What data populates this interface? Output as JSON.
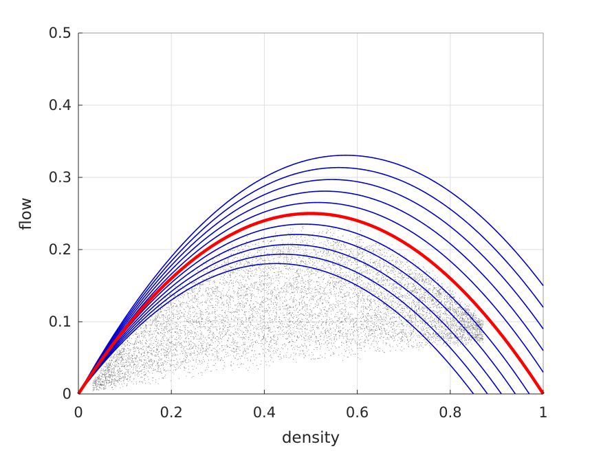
{
  "chart_data": {
    "type": "line",
    "title": "",
    "xlabel": "density",
    "ylabel": "flow",
    "xlim": [
      0,
      1
    ],
    "ylim": [
      0,
      0.5
    ],
    "xticks": [
      "0",
      "0.2",
      "0.4",
      "0.6",
      "0.8",
      "1"
    ],
    "yticks": [
      "0",
      "0.1",
      "0.2",
      "0.3",
      "0.4",
      "0.5"
    ],
    "grid": true,
    "legend": "none",
    "colors": {
      "reference": "#ff0000",
      "family": "#0000cc",
      "scatter": "#000000",
      "grid": "#dedede",
      "axes": "#262626"
    },
    "reference_curve": {
      "formula": "flow = density * (1 - density)",
      "x": [
        0,
        0.1,
        0.2,
        0.3,
        0.4,
        0.5,
        0.6,
        0.7,
        0.8,
        0.9,
        1.0
      ],
      "y": [
        0,
        0.09,
        0.16,
        0.21,
        0.24,
        0.25,
        0.24,
        0.21,
        0.16,
        0.09,
        0
      ]
    },
    "curve_family": {
      "formula": "flow = density * (1 - density) + c * density",
      "offsets": [
        0.15,
        0.12,
        0.09,
        0.06,
        0.03,
        -0.03,
        -0.06,
        -0.09,
        -0.12,
        -0.15
      ]
    },
    "scatter": {
      "description_points": [
        {
          "x": 0.05,
          "y": 0.005
        },
        {
          "x": 0.1,
          "y": 0.02
        },
        {
          "x": 0.2,
          "y": 0.04
        },
        {
          "x": 0.3,
          "y": 0.1
        },
        {
          "x": 0.4,
          "y": 0.12
        },
        {
          "x": 0.5,
          "y": 0.14
        },
        {
          "x": 0.6,
          "y": 0.15
        },
        {
          "x": 0.7,
          "y": 0.14
        },
        {
          "x": 0.8,
          "y": 0.09
        },
        {
          "x": 0.85,
          "y": 0.08
        }
      ]
    }
  }
}
